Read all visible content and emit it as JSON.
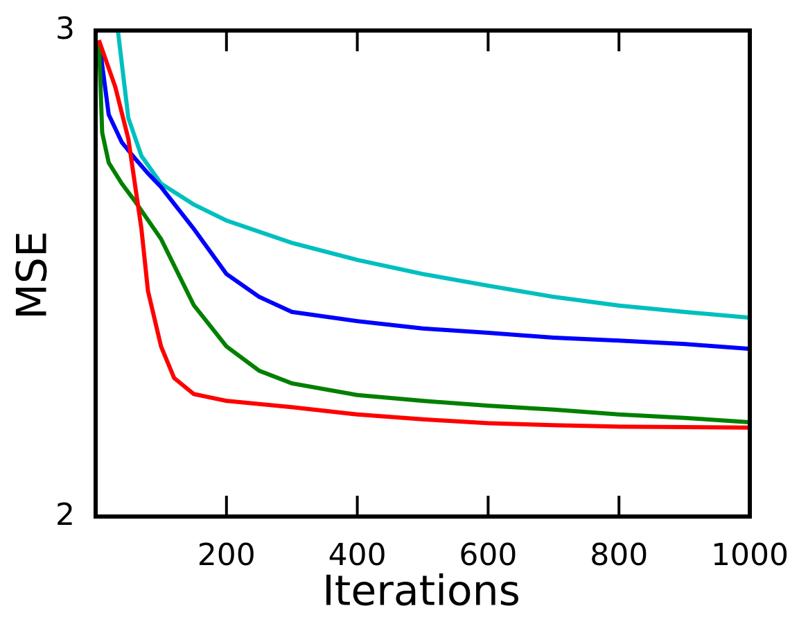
{
  "chart_data": {
    "type": "line",
    "x_label": "Iterations",
    "y_label": "MSE",
    "xlim": [
      0,
      1000
    ],
    "xticks": [
      200,
      400,
      600,
      800,
      1000
    ],
    "ylim": [
      2,
      3
    ],
    "yticks": [
      2,
      3
    ],
    "series": [
      {
        "color": "#00bfbf",
        "x": [
          34,
          50,
          70,
          100,
          150,
          200,
          300,
          400,
          500,
          600,
          700,
          800,
          900,
          1000
        ],
        "values": [
          3.0,
          2.82,
          2.742,
          2.685,
          2.642,
          2.609,
          2.563,
          2.528,
          2.499,
          2.475,
          2.452,
          2.434,
          2.421,
          2.409
        ]
      },
      {
        "color": "#0000ff",
        "x": [
          5,
          20,
          40,
          60,
          80,
          100,
          150,
          200,
          250,
          300,
          400,
          500,
          600,
          700,
          800,
          900,
          1000
        ],
        "values": [
          2.98,
          2.827,
          2.77,
          2.737,
          2.706,
          2.678,
          2.592,
          2.499,
          2.452,
          2.421,
          2.402,
          2.387,
          2.378,
          2.368,
          2.362,
          2.355,
          2.345
        ]
      },
      {
        "color": "#008000",
        "x": [
          5,
          10,
          20,
          40,
          60,
          100,
          150,
          200,
          250,
          300,
          400,
          500,
          600,
          700,
          800,
          900,
          1000
        ],
        "values": [
          2.98,
          2.79,
          2.728,
          2.685,
          2.649,
          2.571,
          2.435,
          2.35,
          2.3,
          2.274,
          2.25,
          2.238,
          2.228,
          2.22,
          2.21,
          2.203,
          2.194
        ]
      },
      {
        "color": "#ff0000",
        "x": [
          5,
          30,
          50,
          70,
          80,
          100,
          120,
          150,
          200,
          300,
          400,
          500,
          600,
          700,
          800,
          900,
          1000
        ],
        "values": [
          2.98,
          2.884,
          2.777,
          2.592,
          2.464,
          2.35,
          2.285,
          2.252,
          2.238,
          2.225,
          2.21,
          2.2,
          2.192,
          2.188,
          2.185,
          2.184,
          2.183
        ]
      }
    ]
  }
}
